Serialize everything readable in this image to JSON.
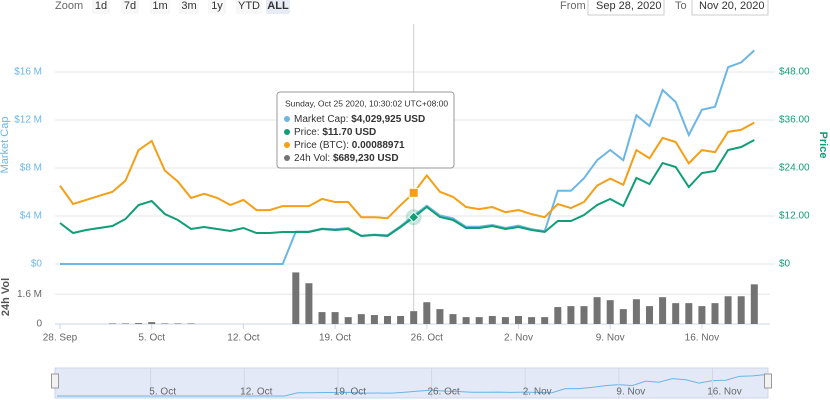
{
  "controls": {
    "zoom_label": "Zoom",
    "buttons": [
      "1d",
      "7d",
      "1m",
      "3m",
      "1y",
      "YTD",
      "ALL"
    ],
    "selected": "ALL",
    "from_label": "From",
    "from": "Sep 28, 2020",
    "to_label": "To",
    "to": "Nov 20, 2020"
  },
  "chart_data": [
    {
      "type": "line",
      "x": [
        "Sep 28",
        "Sep 29",
        "Sep 30",
        "Oct 1",
        "Oct 2",
        "Oct 3",
        "Oct 4",
        "Oct 5",
        "Oct 6",
        "Oct 7",
        "Oct 8",
        "Oct 9",
        "Oct 10",
        "Oct 11",
        "Oct 12",
        "Oct 13",
        "Oct 14",
        "Oct 15",
        "Oct 16",
        "Oct 17",
        "Oct 18",
        "Oct 19",
        "Oct 20",
        "Oct 21",
        "Oct 22",
        "Oct 23",
        "Oct 24",
        "Oct 25",
        "Oct 26",
        "Oct 27",
        "Oct 28",
        "Oct 29",
        "Oct 30",
        "Oct 31",
        "Nov 1",
        "Nov 2",
        "Nov 3",
        "Nov 4",
        "Nov 5",
        "Nov 6",
        "Nov 7",
        "Nov 8",
        "Nov 9",
        "Nov 10",
        "Nov 11",
        "Nov 12",
        "Nov 13",
        "Nov 14",
        "Nov 15",
        "Nov 16",
        "Nov 17",
        "Nov 18",
        "Nov 19",
        "Nov 20"
      ],
      "ylabel": "Market Cap",
      "y2label": "Price",
      "ylim": [
        0,
        20
      ],
      "yticks": [
        {
          "value": 0,
          "label": "$0"
        },
        {
          "value": 4,
          "label": "$4 M"
        },
        {
          "value": 8,
          "label": "$8 M"
        },
        {
          "value": 12,
          "label": "$12 M"
        },
        {
          "value": 16,
          "label": "$16 M"
        }
      ],
      "y2lim": [
        0,
        60
      ],
      "y2ticks": [
        {
          "value": 0,
          "label": "$0"
        },
        {
          "value": 12,
          "label": "$12.00"
        },
        {
          "value": 24,
          "label": "$24.00"
        },
        {
          "value": 36,
          "label": "$36.00"
        },
        {
          "value": 48,
          "label": "$48.00"
        }
      ],
      "y3lim": [
        0,
        0.003
      ],
      "grid": true,
      "series": [
        {
          "color": "#6cb6e6",
          "values": [
            0,
            0,
            0,
            0,
            0,
            0,
            0,
            0,
            0,
            0,
            0,
            0,
            0,
            0,
            0,
            0,
            0,
            0,
            2.7,
            2.7,
            2.95,
            2.9,
            3.0,
            2.35,
            2.45,
            2.4,
            3.15,
            4.029925,
            4.85,
            4.05,
            3.8,
            3.1,
            3.1,
            3.25,
            3.0,
            3.2,
            2.9,
            2.75,
            6.1,
            6.1,
            7.15,
            8.65,
            9.5,
            8.65,
            12.4,
            11.5,
            14.5,
            13.5,
            10.75,
            12.85,
            13.1,
            16.4,
            16.8,
            17.8
          ]
        },
        {
          "color": "#119e77",
          "axis": "y2",
          "values": [
            10.25,
            7.75,
            8.5,
            9,
            9.5,
            11.25,
            14.75,
            15.75,
            12.5,
            11,
            8.75,
            9.25,
            8.75,
            8.25,
            9,
            7.75,
            7.75,
            8,
            8,
            8,
            8.75,
            8.5,
            8.75,
            7,
            7.25,
            7,
            9.25,
            11.7,
            14.25,
            11.75,
            11,
            9,
            9,
            9.5,
            8.75,
            9.25,
            8.5,
            8,
            10.75,
            10.75,
            12.25,
            14.75,
            16.25,
            14.5,
            21.5,
            20,
            25.25,
            24.25,
            19.25,
            22.75,
            23.25,
            28.5,
            29.25,
            31
          ]
        },
        {
          "color": "#f49f16",
          "axis": "y3",
          "values": [
            0.000979,
            0.00075,
            0.000801,
            0.000852,
            0.000902,
            0.001042,
            0.001424,
            0.001538,
            0.001169,
            0.00103,
            0.000826,
            0.000877,
            0.000826,
            0.000737,
            0.000801,
            0.000674,
            0.000674,
            0.000724,
            0.000724,
            0.000724,
            0.000813,
            0.000775,
            0.000775,
            0.000585,
            0.000585,
            0.000572,
            0.000737,
            0.00088971,
            0.001106,
            0.000902,
            0.000839,
            0.000712,
            0.000686,
            0.000712,
            0.000648,
            0.000674,
            0.000623,
            0.000585,
            0.00075,
            0.000699,
            0.000775,
            0.000979,
            0.001068,
            0.000991,
            0.001424,
            0.001322,
            0.001576,
            0.001525,
            0.001258,
            0.001424,
            0.001398,
            0.001652,
            0.001678,
            0.001767
          ]
        }
      ]
    },
    {
      "type": "bar",
      "x": [
        "Sep 28",
        "Sep 29",
        "Sep 30",
        "Oct 1",
        "Oct 2",
        "Oct 3",
        "Oct 4",
        "Oct 5",
        "Oct 6",
        "Oct 7",
        "Oct 8",
        "Oct 9",
        "Oct 10",
        "Oct 11",
        "Oct 12",
        "Oct 13",
        "Oct 14",
        "Oct 15",
        "Oct 16",
        "Oct 17",
        "Oct 18",
        "Oct 19",
        "Oct 20",
        "Oct 21",
        "Oct 22",
        "Oct 23",
        "Oct 24",
        "Oct 25",
        "Oct 26",
        "Oct 27",
        "Oct 28",
        "Oct 29",
        "Oct 30",
        "Oct 31",
        "Nov 1",
        "Nov 2",
        "Nov 3",
        "Nov 4",
        "Nov 5",
        "Nov 6",
        "Nov 7",
        "Nov 8",
        "Nov 9",
        "Nov 10",
        "Nov 11",
        "Nov 12",
        "Nov 13",
        "Nov 14",
        "Nov 15",
        "Nov 16",
        "Nov 17",
        "Nov 18",
        "Nov 19",
        "Nov 20"
      ],
      "xticks": [
        {
          "value": "Sep 28",
          "label": "28. Sep"
        },
        {
          "value": "Oct 5",
          "label": "5. Oct"
        },
        {
          "value": "Oct 12",
          "label": "12. Oct"
        },
        {
          "value": "Oct 19",
          "label": "19. Oct"
        },
        {
          "value": "Oct 26",
          "label": "26. Oct"
        },
        {
          "value": "Nov 2",
          "label": "2. Nov"
        },
        {
          "value": "Nov 9",
          "label": "9. Nov"
        },
        {
          "value": "Nov 16",
          "label": "16. Nov"
        }
      ],
      "ylabel": "24h Vol",
      "ylim": [
        0,
        2.9
      ],
      "yticks": [
        0,
        {
          "value": 1.6,
          "label": "1.6 M"
        }
      ],
      "color": "#737373",
      "values": [
        0,
        0,
        0,
        0,
        0.03,
        0.03,
        0.05,
        0.1,
        0.03,
        0.03,
        0.03,
        0,
        0,
        0,
        0,
        0,
        0,
        0,
        2.77,
        2.19,
        0.64,
        0.64,
        0.37,
        0.53,
        0.48,
        0.43,
        0.43,
        0.68923,
        1.17,
        0.8,
        0.53,
        0.37,
        0.37,
        0.43,
        0.37,
        0.43,
        0.37,
        0.37,
        0.91,
        0.96,
        0.96,
        1.44,
        1.28,
        0.8,
        1.33,
        0.96,
        1.44,
        1.12,
        1.12,
        0.96,
        1.12,
        1.49,
        1.49,
        2.13
      ]
    }
  ],
  "tooltip": {
    "title": "Sunday, Oct 25 2020, 10:30:02 UTC+08:00",
    "rows": [
      {
        "label": "Market Cap:",
        "value": "$4,029,925 USD"
      },
      {
        "label": "Price:",
        "value": "$11.70 USD"
      },
      {
        "label": "Price (BTC):",
        "value": "0.00088971"
      },
      {
        "label": "24h Vol:",
        "value": "$689,230 USD"
      }
    ]
  }
}
